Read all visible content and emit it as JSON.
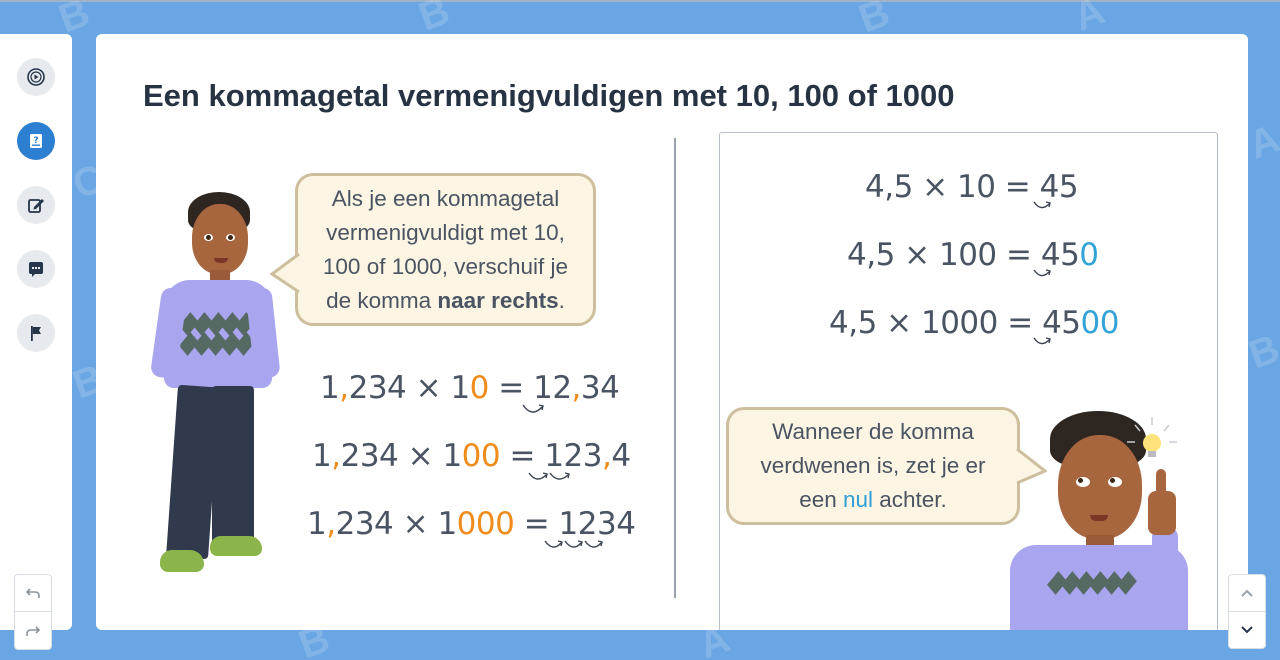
{
  "page": {
    "title": "Een kommagetal vermenigvuldigen met 10, 100 of 1000"
  },
  "sidebar": {
    "items": [
      {
        "name": "play",
        "icon": "play-circle-icon",
        "active": false
      },
      {
        "name": "lesson",
        "icon": "book-question-icon",
        "active": true
      },
      {
        "name": "edit",
        "icon": "edit-icon",
        "active": false
      },
      {
        "name": "chat",
        "icon": "chat-icon",
        "active": false
      },
      {
        "name": "flag",
        "icon": "flag-icon",
        "active": false
      }
    ],
    "undo_icon": "undo-icon",
    "redo_icon": "redo-icon"
  },
  "nav": {
    "up_icon": "chevron-up-icon",
    "down_icon": "chevron-down-icon"
  },
  "left": {
    "bubble": {
      "line1": "Als je een kommagetal",
      "line2": "vermenigvuldigt met 10,",
      "line3": "100 of 1000, verschuif je",
      "line4_pre": "de komma ",
      "line4_bold": "naar rechts",
      "line4_post": "."
    },
    "equations": [
      {
        "a1": "1",
        "a_comma": ",",
        "a2": "234 × 1",
        "zeros": "0",
        "eq": " = ",
        "r1": "12",
        "r_comma": ",",
        "r2": "34"
      },
      {
        "a1": "1",
        "a_comma": ",",
        "a2": "234 × 1",
        "zeros": "00",
        "eq": " = ",
        "r1": "123",
        "r_comma": ",",
        "r2": "4"
      },
      {
        "a1": "1",
        "a_comma": ",",
        "a2": "234 × 1",
        "zeros": "000",
        "eq": " = ",
        "r1": "1234",
        "r_comma": "",
        "r2": ""
      }
    ]
  },
  "right": {
    "equations": [
      {
        "expr": "4,5 × 10 = ",
        "result": "45",
        "added": ""
      },
      {
        "expr": "4,5 × 100 = ",
        "result": "45",
        "added": "0"
      },
      {
        "expr": "4,5 × 1000 = ",
        "result": "45",
        "added": "00"
      }
    ],
    "bubble": {
      "line1": "Wanneer de komma",
      "line2": "verdwenen is, zet je er",
      "line3_pre": "een ",
      "line3_highlight": "nul",
      "line3_post": " achter."
    }
  },
  "colors": {
    "background": "#6aa6e3",
    "accent_blue": "#2d7fd1",
    "highlight_orange": "#ef8c1b",
    "highlight_blue": "#34a4d8",
    "bubble_fill": "#fdf5e3",
    "bubble_border": "#cdbf9d"
  }
}
